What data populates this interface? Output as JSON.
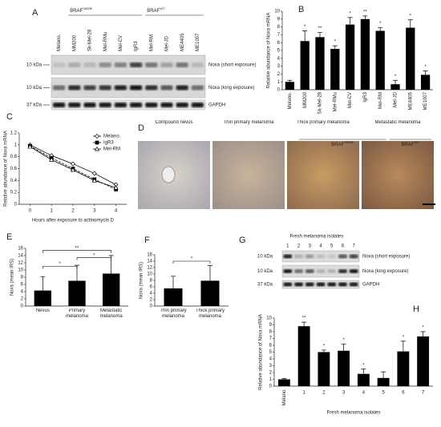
{
  "figure": {
    "A": {
      "panel": "A",
      "lanes": [
        "Melano.",
        "MM200",
        "Sk-Mel-28",
        "Mel-RMu",
        "Mel-CV",
        "IgR3",
        "Mel-RM",
        "Mel-JD",
        "ME4405",
        "ME1007"
      ],
      "groups": [
        {
          "name": "BRAF",
          "sup": "V600E"
        },
        {
          "name": "BRAF",
          "sup": "WT"
        }
      ],
      "markers": [
        "10 kDa",
        "10 kDa",
        "37 kDa"
      ],
      "blots": [
        "Noxa (short exposure)",
        "Noxa (long exposure)",
        "GAPDH"
      ]
    },
    "D": {
      "panel": "D",
      "titles": [
        "Compound nevus",
        "Thin primary melanoma",
        "Thick primary melanoma",
        "Metastatic melanoma"
      ]
    },
    "G": {
      "panel": "G",
      "title": "Fresh melanoma isolates",
      "lanes": [
        "1",
        "2",
        "3",
        "4",
        "5",
        "6",
        "7"
      ],
      "markers": [
        "10 kDa",
        "10 kDa",
        "37 kDa"
      ],
      "blots": [
        "Noxa (short exposure)",
        "Noxa (long exposure)",
        "GAPDH"
      ]
    }
  },
  "chart_data": [
    {
      "type": "bar",
      "panel": "B",
      "ylabel": "Relative abundance of Noxa mRNA",
      "categories": [
        "Melano.",
        "MM200",
        "Sk-Mel-28",
        "Mel-RMu",
        "Mel-CV",
        "IgR3",
        "Mel-RM",
        "Mel-JD",
        "ME4405",
        "ME1007"
      ],
      "values": [
        1.0,
        6.2,
        6.7,
        5.2,
        8.3,
        9.0,
        7.5,
        0.7,
        7.9,
        1.9
      ],
      "errors": [
        0.2,
        1.3,
        0.6,
        0.4,
        0.9,
        0.4,
        0.4,
        0.5,
        1.0,
        0.5
      ],
      "sig": [
        null,
        "*",
        "**",
        "*",
        "*",
        "**",
        "*",
        "*",
        "*",
        "*"
      ],
      "groups": [
        {
          "name": "BRAF",
          "sup": "V600E"
        },
        {
          "name": "BRAF",
          "sup": "WT"
        }
      ],
      "color": "#000000",
      "ylim": [
        0,
        10
      ],
      "yticks": [
        0,
        1,
        2,
        3,
        4,
        5,
        6,
        7,
        8,
        9,
        10
      ]
    },
    {
      "type": "line",
      "panel": "C",
      "ylabel": "Relative abundance of Noxa mRNA",
      "xlabel": "Hours after exposure to actinomycin D",
      "x": [
        0,
        1,
        2,
        3,
        4
      ],
      "series": [
        {
          "name": "Melano.",
          "color": "#000000",
          "marker": "diamond",
          "values": [
            1.0,
            0.82,
            0.68,
            0.52,
            0.33
          ]
        },
        {
          "name": "IgR3",
          "color": "#000000",
          "marker": "square",
          "values": [
            0.98,
            0.78,
            0.6,
            0.42,
            0.25
          ]
        },
        {
          "name": "Mel-RM",
          "color": "#000000",
          "marker": "triangle",
          "values": [
            0.97,
            0.75,
            0.58,
            0.4,
            0.28
          ]
        }
      ],
      "xlim": [
        -0.5,
        4.5
      ],
      "xticks": [
        0,
        1,
        2,
        3,
        4
      ],
      "ylim": [
        0,
        1.2
      ],
      "yticks": [
        0,
        0.2,
        0.4,
        0.6,
        0.8,
        1,
        1.2
      ],
      "legend": "upper right"
    },
    {
      "type": "bar",
      "panel": "E",
      "ylabel": "Noxa (mean IRS)",
      "categories": [
        "Nevus",
        "Primary melanoma",
        "Metastatic melanoma"
      ],
      "values": [
        4.3,
        7.0,
        9.0
      ],
      "errors": [
        3.8,
        4.3,
        5.0
      ],
      "annotations": [
        "*",
        "*",
        "**"
      ],
      "color": "#000000",
      "ylim": [
        0,
        16
      ],
      "yticks": [
        0,
        2,
        4,
        6,
        8,
        10,
        12,
        14,
        16
      ]
    },
    {
      "type": "bar",
      "panel": "F",
      "ylabel": "Noxa (mean IRS)",
      "categories": [
        "Thin primary melanoma",
        "Thick primary melanoma"
      ],
      "values": [
        5.5,
        7.9
      ],
      "errors": [
        3.8,
        4.7
      ],
      "annotations": [
        "*"
      ],
      "color": "#000000",
      "ylim": [
        0,
        16
      ],
      "yticks": [
        0,
        2,
        4,
        6,
        8,
        10,
        12,
        14,
        16
      ]
    },
    {
      "type": "bar",
      "panel": "H",
      "ylabel": "Relative abundance of Noxa mRNA",
      "xlabel": "Fresh melanoma isolates",
      "categories": [
        "Melano.",
        "1",
        "2",
        "3",
        "4",
        "5",
        "6",
        "7"
      ],
      "values": [
        1.0,
        8.8,
        5.0,
        5.2,
        1.8,
        1.2,
        5.1,
        7.3
      ],
      "errors": [
        0.1,
        0.6,
        0.3,
        1.0,
        0.7,
        0.9,
        1.5,
        0.7
      ],
      "sig": [
        null,
        "**",
        "*",
        "*",
        "*",
        null,
        "*",
        "*"
      ],
      "color": "#000000",
      "ylim": [
        0,
        10
      ],
      "yticks": [
        0,
        1,
        2,
        3,
        4,
        5,
        6,
        7,
        8,
        9,
        10
      ]
    }
  ]
}
